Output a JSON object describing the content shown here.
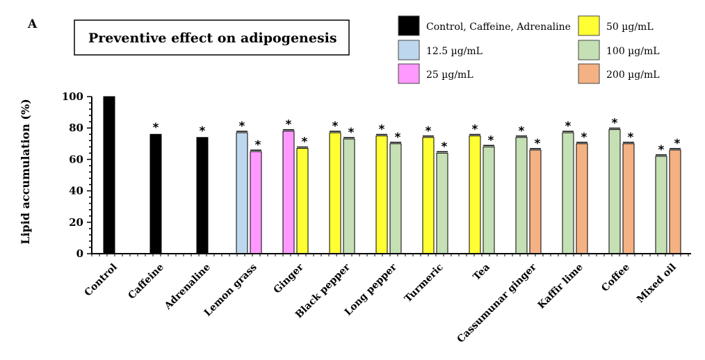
{
  "panel_label": "A",
  "chart_data": {
    "type": "bar",
    "title": "Preventive effect on adipogenesis",
    "xlabel": "",
    "ylabel": "Lipid accumulation (%)",
    "ylim": [
      0,
      100
    ],
    "yticks": [
      "0",
      "20",
      "40",
      "60",
      "80",
      "100"
    ],
    "legend_position": "top-right",
    "legend": [
      {
        "label": "Control, Caffeine, Adrenaline",
        "color": "#000000"
      },
      {
        "label": "12.5 µg/mL",
        "color": "#bdd7ee"
      },
      {
        "label": "25 µg/mL",
        "color": "#ff99ff"
      },
      {
        "label": "50 µg/mL",
        "color": "#ffff33"
      },
      {
        "label": "100 µg/mL",
        "color": "#c5e0b4"
      },
      {
        "label": "200 µg/mL",
        "color": "#f4b183"
      }
    ],
    "significance_marker": "*",
    "categories": [
      {
        "name": "Control",
        "bars": [
          {
            "value": 100,
            "color": "#000000",
            "sig": false
          }
        ]
      },
      {
        "name": "Caffeine",
        "bars": [
          {
            "value": 76,
            "color": "#000000",
            "sig": true
          }
        ]
      },
      {
        "name": "Adrenaline",
        "bars": [
          {
            "value": 74,
            "color": "#000000",
            "sig": true
          }
        ]
      },
      {
        "name": "Lemon grass",
        "bars": [
          {
            "value": 77,
            "color": "#bdd7ee",
            "sig": true
          },
          {
            "value": 65,
            "color": "#ff99ff",
            "sig": true
          }
        ]
      },
      {
        "name": "Ginger",
        "bars": [
          {
            "value": 78,
            "color": "#ff99ff",
            "sig": true
          },
          {
            "value": 67,
            "color": "#ffff33",
            "sig": true
          }
        ]
      },
      {
        "name": "Black pepper",
        "bars": [
          {
            "value": 77,
            "color": "#ffff33",
            "sig": true
          },
          {
            "value": 73,
            "color": "#c5e0b4",
            "sig": true
          }
        ]
      },
      {
        "name": "Long pepper",
        "bars": [
          {
            "value": 75,
            "color": "#ffff33",
            "sig": true
          },
          {
            "value": 70,
            "color": "#c5e0b4",
            "sig": true
          }
        ]
      },
      {
        "name": "Turmeric",
        "bars": [
          {
            "value": 74,
            "color": "#ffff33",
            "sig": true
          },
          {
            "value": 64,
            "color": "#c5e0b4",
            "sig": true
          }
        ]
      },
      {
        "name": "Tea",
        "bars": [
          {
            "value": 75,
            "color": "#ffff33",
            "sig": true
          },
          {
            "value": 68,
            "color": "#c5e0b4",
            "sig": true
          }
        ]
      },
      {
        "name": "Cassumunar ginger",
        "bars": [
          {
            "value": 74,
            "color": "#c5e0b4",
            "sig": true
          },
          {
            "value": 66,
            "color": "#f4b183",
            "sig": true
          }
        ]
      },
      {
        "name": "Kaffir lime",
        "bars": [
          {
            "value": 77,
            "color": "#c5e0b4",
            "sig": true
          },
          {
            "value": 70,
            "color": "#f4b183",
            "sig": true
          }
        ]
      },
      {
        "name": "Coffee",
        "bars": [
          {
            "value": 79,
            "color": "#c5e0b4",
            "sig": true
          },
          {
            "value": 70,
            "color": "#f4b183",
            "sig": true
          }
        ]
      },
      {
        "name": "Mixed oil",
        "bars": [
          {
            "value": 62,
            "color": "#c5e0b4",
            "sig": true
          },
          {
            "value": 66,
            "color": "#f4b183",
            "sig": true
          }
        ]
      }
    ]
  }
}
